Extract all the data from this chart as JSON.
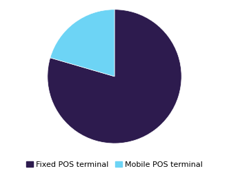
{
  "labels": [
    "Fixed POS terminal",
    "Mobile POS terminal"
  ],
  "values": [
    79.5,
    20.5
  ],
  "colors": [
    "#2d1b4e",
    "#6dd4f5"
  ],
  "startangle": 90,
  "legend_fontsize": 8,
  "background_color": "#ffffff"
}
